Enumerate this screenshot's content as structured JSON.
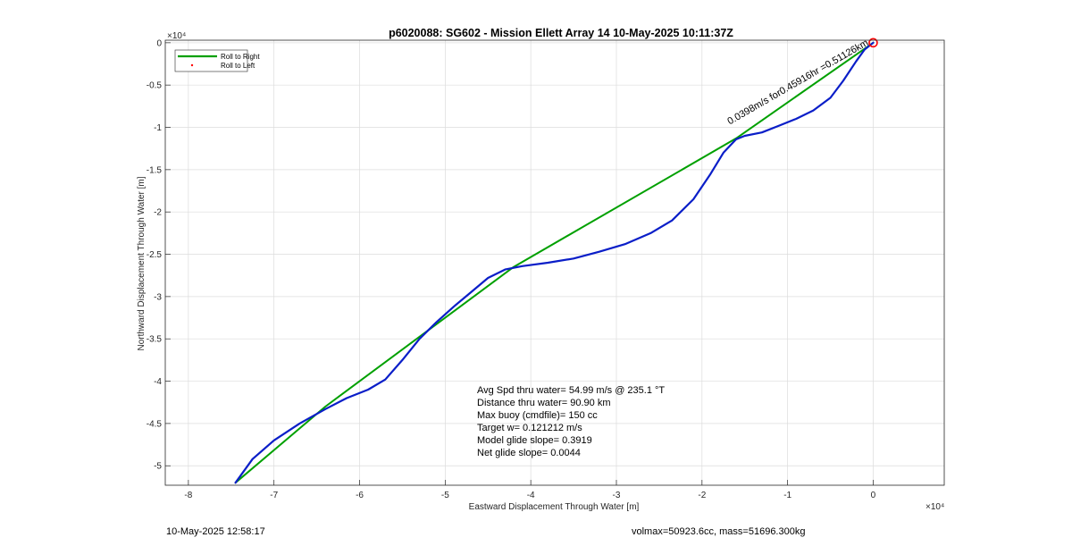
{
  "chart_data": {
    "type": "line",
    "title": "p6020088: SG602 - Mission Ellett Array 14 10-May-2025 10:11:37Z",
    "xlabel": "Eastward Displacement Through Water [m]",
    "ylabel": "Northward Displacement Through Water [m]",
    "x_exponent_label": "×10⁴",
    "y_exponent_label": "×10⁴",
    "xlim": [
      -8.27,
      0.83
    ],
    "ylim": [
      -5.23,
      0.03
    ],
    "x_scale_factor": 10000,
    "y_scale_factor": 10000,
    "x_ticks": [
      -8,
      -7,
      -6,
      -5,
      -4,
      -3,
      -2,
      -1,
      0
    ],
    "x_tick_labels": [
      "-8",
      "-7",
      "-6",
      "-5",
      "-4",
      "-3",
      "-2",
      "-1",
      "0"
    ],
    "y_ticks": [
      0,
      -0.5,
      -1,
      -1.5,
      -2,
      -2.5,
      -3,
      -3.5,
      -4,
      -4.5,
      -5
    ],
    "y_tick_labels": [
      "0",
      "-0.5",
      "-1",
      "-1.5",
      "-2",
      "-2.5",
      "-3",
      "-3.5",
      "-4",
      "-4.5",
      "-5"
    ],
    "grid": true,
    "legend_placement": "top-left",
    "legend": [
      {
        "label": "Roll to Right",
        "color": "#00a000",
        "style": "line"
      },
      {
        "label": "Roll to Left",
        "color": "#ff0000",
        "style": "dot"
      }
    ],
    "series": [
      {
        "name": "Roll to Right",
        "color": "#00a000",
        "points": [
          [
            0.0,
            0.0
          ],
          [
            -1.6,
            -1.13
          ],
          [
            -4.2,
            -2.65
          ],
          [
            -6.4,
            -4.3
          ],
          [
            -7.45,
            -5.2
          ]
        ]
      },
      {
        "color": "#0a1ec8",
        "points": [
          [
            0.0,
            0.0
          ],
          [
            -0.1,
            -0.08
          ],
          [
            -0.2,
            -0.22
          ],
          [
            -0.35,
            -0.45
          ],
          [
            -0.5,
            -0.65
          ],
          [
            -0.7,
            -0.8
          ],
          [
            -0.9,
            -0.9
          ],
          [
            -1.1,
            -0.98
          ],
          [
            -1.3,
            -1.06
          ],
          [
            -1.5,
            -1.1
          ],
          [
            -1.6,
            -1.14
          ],
          [
            -1.75,
            -1.3
          ],
          [
            -1.9,
            -1.55
          ],
          [
            -2.1,
            -1.85
          ],
          [
            -2.35,
            -2.1
          ],
          [
            -2.6,
            -2.25
          ],
          [
            -2.9,
            -2.38
          ],
          [
            -3.2,
            -2.47
          ],
          [
            -3.5,
            -2.55
          ],
          [
            -3.8,
            -2.6
          ],
          [
            -4.1,
            -2.64
          ],
          [
            -4.3,
            -2.68
          ],
          [
            -4.5,
            -2.78
          ],
          [
            -4.7,
            -2.95
          ],
          [
            -4.9,
            -3.12
          ],
          [
            -5.1,
            -3.3
          ],
          [
            -5.3,
            -3.5
          ],
          [
            -5.5,
            -3.75
          ],
          [
            -5.7,
            -3.98
          ],
          [
            -5.9,
            -4.1
          ],
          [
            -6.15,
            -4.2
          ],
          [
            -6.4,
            -4.33
          ],
          [
            -6.7,
            -4.5
          ],
          [
            -7.0,
            -4.7
          ],
          [
            -7.25,
            -4.92
          ],
          [
            -7.45,
            -5.2
          ]
        ]
      }
    ],
    "markers": [
      {
        "x": 0.0,
        "y": 0.0,
        "shape": "circle",
        "color": "#ff0000"
      }
    ],
    "annotations": [
      {
        "x": -0.05,
        "y": -0.02,
        "angle": -30,
        "text": "0.0398m/s for0.45916hr =0.51126km"
      }
    ],
    "text_block": [
      "Avg Spd thru water= 54.99 m/s @ 235.1 °T",
      "Distance thru water= 90.90 km",
      "Max buoy (cmdfile)= 150 cc",
      "Target w= 0.121212 m/s",
      "Model glide slope= 0.3919",
      "Net glide slope= 0.0044"
    ]
  },
  "footer": {
    "timestamp": "10-May-2025 12:58:17",
    "params": "volmax=50923.6cc, mass=51696.300kg"
  }
}
